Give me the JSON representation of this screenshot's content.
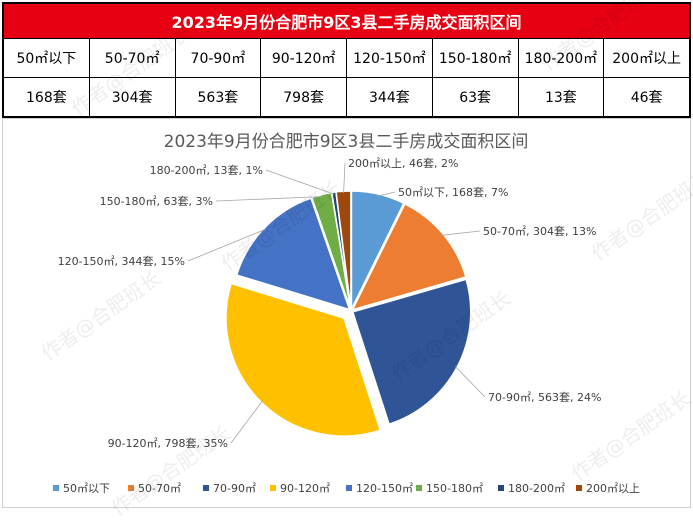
{
  "table": {
    "title": "2023年9月份合肥市9区3县二手房成交面积区间",
    "headers": [
      "50㎡以下",
      "50-70㎡",
      "70-90㎡",
      "90-120㎡",
      "120-150㎡",
      "150-180㎡",
      "180-200㎡",
      "200㎡以上"
    ],
    "values": [
      "168套",
      "304套",
      "563套",
      "798套",
      "344套",
      "63套",
      "13套",
      "46套"
    ]
  },
  "watermark": "作者@合肥班长",
  "chart_data": {
    "type": "pie",
    "title": "2023年9月份合肥市9区3县二手房成交面积区间",
    "categories": [
      "50㎡以下",
      "50-70㎡",
      "70-90㎡",
      "90-120㎡",
      "120-150㎡",
      "150-180㎡",
      "180-200㎡",
      "200㎡以上"
    ],
    "values": [
      168,
      304,
      563,
      798,
      344,
      63,
      13,
      46
    ],
    "unit": "套",
    "percentages": [
      "7%",
      "13%",
      "24%",
      "35%",
      "15%",
      "3%",
      "1%",
      "2%"
    ],
    "data_labels": [
      "50㎡以下, 168套, 7%",
      "50-70㎡, 304套, 13%",
      "70-90㎡, 563套, 24%",
      "90-120㎡, 798套, 35%",
      "120-150㎡, 344套, 15%",
      "150-180㎡, 63套, 3%",
      "180-200㎡, 13套, 1%",
      "200㎡以上, 46套, 2%"
    ],
    "colors": [
      "#5b9bd5",
      "#ed7d31",
      "#2f5597",
      "#ffc000",
      "#4472c4",
      "#70ad47",
      "#264478",
      "#9e480e"
    ],
    "exploded": [
      "90-120㎡"
    ],
    "legend_position": "bottom"
  }
}
